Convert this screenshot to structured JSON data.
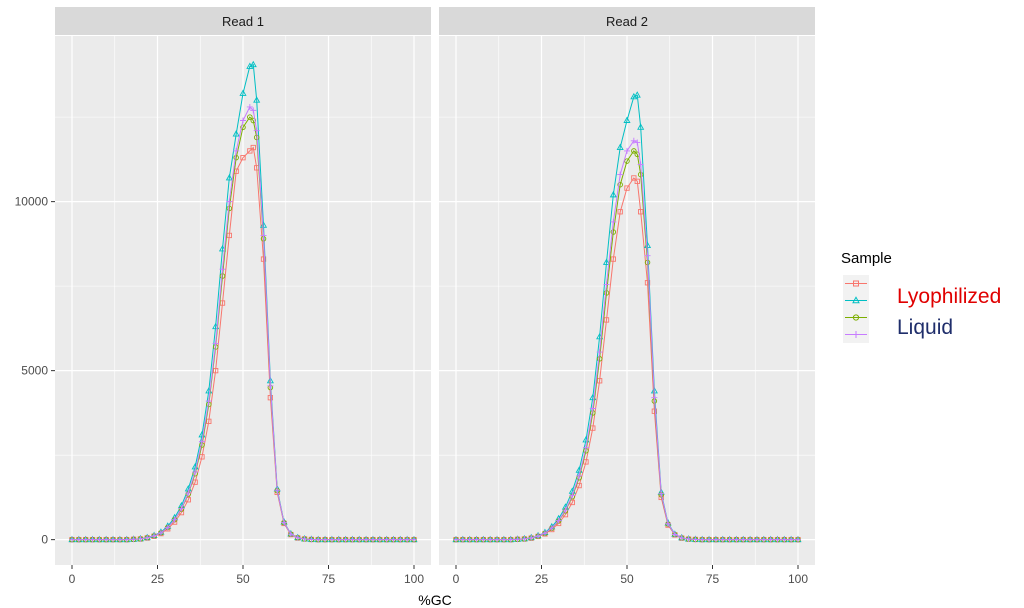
{
  "colors": {
    "panel_bg": "#EBEBEB",
    "strip_bg": "#D9D9D9",
    "grid": "#FFFFFF",
    "series": [
      "#F8766D",
      "#00BFC4",
      "#7CAE00",
      "#C77CFF"
    ],
    "legend_labels": [
      "#E00000",
      "#1F2E6B"
    ]
  },
  "chart_data": {
    "type": "line",
    "xlabel": "%GC",
    "ylabel": "",
    "xlim": [
      0,
      100
    ],
    "ylim": [
      0,
      14000
    ],
    "x_ticks": [
      0,
      25,
      50,
      75,
      100
    ],
    "y_ticks": [
      0,
      5000,
      10000
    ],
    "grid": true,
    "legend": {
      "title": "Sample",
      "placement": "right",
      "labels": [
        "Lyophilized",
        "Liquid"
      ]
    },
    "x": [
      0,
      2,
      4,
      6,
      8,
      10,
      12,
      14,
      16,
      18,
      20,
      22,
      24,
      26,
      28,
      30,
      32,
      34,
      36,
      38,
      40,
      42,
      44,
      46,
      48,
      50,
      52,
      53,
      54,
      56,
      58,
      60,
      62,
      64,
      66,
      68,
      70,
      72,
      74,
      76,
      78,
      80,
      82,
      84,
      86,
      88,
      90,
      92,
      94,
      96,
      98,
      100
    ],
    "panels": [
      {
        "title": "Read 1",
        "series": [
          {
            "marker": "square",
            "values": [
              0,
              0,
              0,
              0,
              0,
              0,
              0,
              0,
              0,
              10,
              20,
              50,
              100,
              180,
              320,
              520,
              800,
              1180,
              1700,
              2450,
              3500,
              5000,
              7000,
              9000,
              10900,
              11300,
              11500,
              11600,
              11000,
              8300,
              4200,
              1400,
              480,
              150,
              50,
              20,
              5,
              0,
              0,
              0,
              0,
              0,
              0,
              0,
              0,
              0,
              0,
              0,
              0,
              0,
              0,
              0
            ]
          },
          {
            "marker": "triangle",
            "values": [
              0,
              0,
              0,
              0,
              0,
              0,
              0,
              0,
              0,
              10,
              25,
              60,
              120,
              220,
              400,
              650,
              1000,
              1500,
              2150,
              3100,
              4400,
              6300,
              8600,
              10700,
              12000,
              13200,
              14000,
              14050,
              13000,
              9300,
              4700,
              1500,
              520,
              170,
              60,
              20,
              5,
              0,
              0,
              0,
              0,
              0,
              0,
              0,
              0,
              0,
              0,
              0,
              0,
              0,
              0,
              0
            ]
          },
          {
            "marker": "circle",
            "values": [
              0,
              0,
              0,
              0,
              0,
              0,
              0,
              0,
              0,
              10,
              22,
              55,
              110,
              200,
              360,
              590,
              900,
              1350,
              1950,
              2800,
              4000,
              5700,
              7800,
              9800,
              11300,
              12200,
              12500,
              12400,
              11900,
              8900,
              4500,
              1450,
              500,
              160,
              55,
              20,
              5,
              0,
              0,
              0,
              0,
              0,
              0,
              0,
              0,
              0,
              0,
              0,
              0,
              0,
              0,
              0
            ]
          },
          {
            "marker": "plus",
            "values": [
              0,
              0,
              0,
              0,
              0,
              0,
              0,
              0,
              0,
              10,
              22,
              55,
              110,
              200,
              360,
              590,
              920,
              1380,
              2000,
              2900,
              4100,
              5800,
              8000,
              10000,
              11500,
              12400,
              12800,
              12700,
              12100,
              9000,
              4550,
              1460,
              505,
              162,
              56,
              20,
              5,
              0,
              0,
              0,
              0,
              0,
              0,
              0,
              0,
              0,
              0,
              0,
              0,
              0,
              0,
              0
            ]
          }
        ]
      },
      {
        "title": "Read 2",
        "series": [
          {
            "marker": "square",
            "values": [
              0,
              0,
              0,
              0,
              0,
              0,
              0,
              0,
              0,
              10,
              20,
              45,
              95,
              170,
              300,
              480,
              740,
              1100,
              1600,
              2300,
              3300,
              4700,
              6500,
              8300,
              9700,
              10400,
              10700,
              10600,
              9700,
              7600,
              3800,
              1250,
              430,
              140,
              45,
              15,
              5,
              0,
              0,
              0,
              0,
              0,
              0,
              0,
              0,
              0,
              0,
              0,
              0,
              0,
              0,
              0
            ]
          },
          {
            "marker": "triangle",
            "values": [
              0,
              0,
              0,
              0,
              0,
              0,
              0,
              0,
              0,
              10,
              24,
              58,
              115,
              210,
              380,
              620,
              960,
              1430,
              2050,
              2950,
              4200,
              6000,
              8200,
              10200,
              11600,
              12400,
              13100,
              13150,
              12200,
              8700,
              4400,
              1400,
              490,
              160,
              55,
              18,
              5,
              0,
              0,
              0,
              0,
              0,
              0,
              0,
              0,
              0,
              0,
              0,
              0,
              0,
              0,
              0
            ]
          },
          {
            "marker": "circle",
            "values": [
              0,
              0,
              0,
              0,
              0,
              0,
              0,
              0,
              0,
              10,
              21,
              50,
              102,
              185,
              335,
              550,
              850,
              1270,
              1830,
              2630,
              3750,
              5350,
              7300,
              9100,
              10500,
              11200,
              11500,
              11400,
              10800,
              8200,
              4100,
              1330,
              460,
              150,
              50,
              17,
              5,
              0,
              0,
              0,
              0,
              0,
              0,
              0,
              0,
              0,
              0,
              0,
              0,
              0,
              0,
              0
            ]
          },
          {
            "marker": "plus",
            "values": [
              0,
              0,
              0,
              0,
              0,
              0,
              0,
              0,
              0,
              10,
              22,
              52,
              105,
              190,
              345,
              565,
              875,
              1310,
              1890,
              2720,
              3880,
              5550,
              7550,
              9400,
              10800,
              11500,
              11800,
              11750,
              11100,
              8400,
              4200,
              1360,
              470,
              152,
              52,
              18,
              5,
              0,
              0,
              0,
              0,
              0,
              0,
              0,
              0,
              0,
              0,
              0,
              0,
              0,
              0,
              0
            ]
          }
        ]
      }
    ]
  }
}
